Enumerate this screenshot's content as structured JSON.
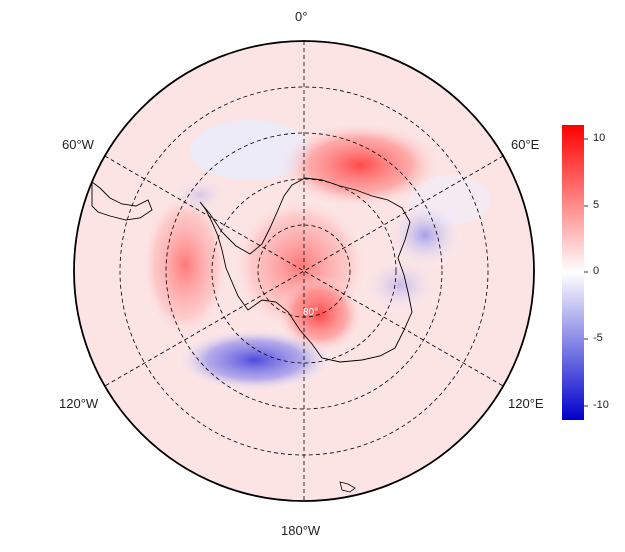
{
  "map": {
    "projection": "south polar stereographic",
    "longitude_labels": {
      "top": "0°",
      "upper_left": "60°W",
      "upper_right": "60°E",
      "lower_left": "120°W",
      "lower_right": "120°E",
      "bottom": "180°W"
    },
    "latitude_label": "80°",
    "graticule": "dashed",
    "anomaly_regions": [
      {
        "name": "warm-north-sector",
        "sign": "positive"
      },
      {
        "name": "warm-antarctic-peninsula-west",
        "sign": "positive"
      },
      {
        "name": "warm-east-antarctica-interior",
        "sign": "positive"
      },
      {
        "name": "cold-amundsen-bellingshausen",
        "sign": "negative"
      },
      {
        "name": "cold-east-coast-sector",
        "sign": "negative"
      }
    ]
  },
  "colorbar": {
    "ticks": [
      "10",
      "5",
      "0",
      "-5",
      "-10"
    ],
    "range": [
      -11,
      11
    ],
    "colors": {
      "high": "#ff0000",
      "mid": "#ffffff",
      "low": "#0000cc"
    }
  }
}
